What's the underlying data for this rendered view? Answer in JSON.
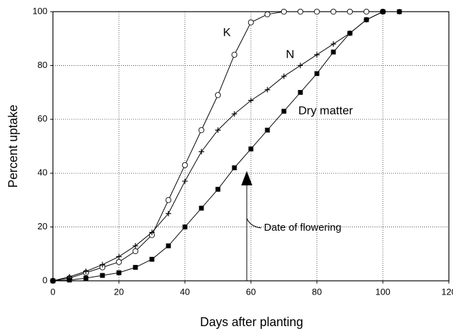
{
  "chart_data": {
    "type": "line",
    "xlabel": "Days after planting",
    "ylabel": "Percent uptake",
    "x": [
      0,
      5,
      10,
      15,
      20,
      25,
      30,
      35,
      40,
      45,
      50,
      55,
      60,
      65,
      70,
      75,
      80,
      85,
      90,
      95,
      100,
      105
    ],
    "series": [
      {
        "name": "K",
        "color": "#000000",
        "marker": "circle",
        "values": [
          0,
          1,
          3,
          5,
          7,
          11,
          17,
          30,
          43,
          56,
          69,
          84,
          96,
          99,
          100,
          100,
          100,
          100,
          100,
          100,
          100,
          null
        ]
      },
      {
        "name": "N",
        "color": "#000000",
        "marker": "plus",
        "values": [
          0,
          1.5,
          3.5,
          6,
          9,
          13,
          18,
          25,
          37,
          48,
          56,
          62,
          67,
          71,
          76,
          80,
          84,
          88,
          92,
          97,
          100,
          100
        ]
      },
      {
        "name": "Dry matter",
        "color": "#000000",
        "marker": "square",
        "values": [
          0,
          0.3,
          1,
          2,
          3,
          5,
          8,
          13,
          20,
          27,
          34,
          42,
          49,
          56,
          63,
          70,
          77,
          85,
          92,
          97,
          100,
          100
        ]
      }
    ],
    "annotations": [
      "Date of flowering"
    ],
    "xlim": [
      0,
      120
    ],
    "xticks": [
      0,
      20,
      40,
      60,
      80,
      100,
      120
    ],
    "ylim": [
      0,
      100
    ],
    "yticks": [
      0,
      20,
      40,
      60,
      80,
      100
    ],
    "grid": true
  }
}
